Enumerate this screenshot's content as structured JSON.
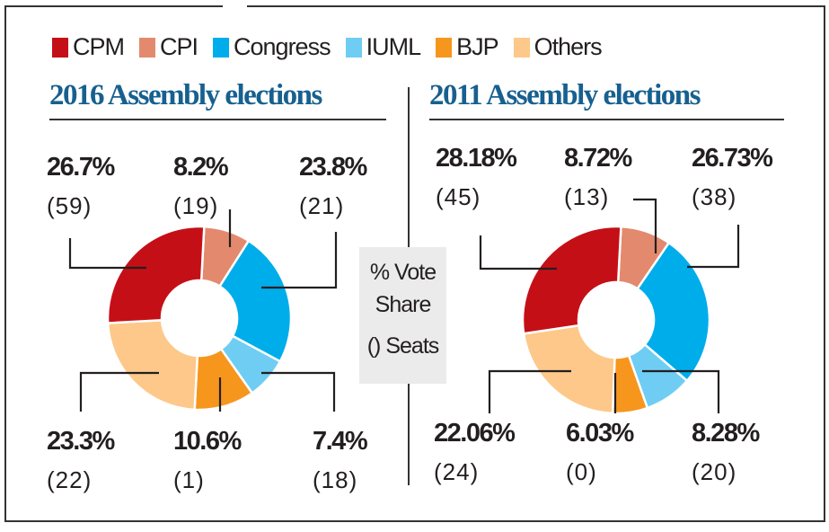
{
  "legend": [
    {
      "label": "CPM",
      "color": "#c50f17"
    },
    {
      "label": "CPI",
      "color": "#e38a6e"
    },
    {
      "label": "Congress",
      "color": "#00adeb"
    },
    {
      "label": "IUML",
      "color": "#6fcdf3"
    },
    {
      "label": "BJP",
      "color": "#f6961d"
    },
    {
      "label": "Others",
      "color": "#fdc88a"
    }
  ],
  "note": {
    "line1": "% Vote",
    "line2": "Share",
    "line3": "() Seats"
  },
  "chart_data": [
    {
      "type": "pie",
      "title": "2016 Assembly elections",
      "donut": true,
      "slices": [
        {
          "name": "CPM",
          "value": 26.7,
          "label": "26.7%",
          "seats": "(59)"
        },
        {
          "name": "CPI",
          "value": 8.2,
          "label": "8.2%",
          "seats": "(19)"
        },
        {
          "name": "Congress",
          "value": 23.8,
          "label": "23.8%",
          "seats": "(21)"
        },
        {
          "name": "IUML",
          "value": 7.4,
          "label": "7.4%",
          "seats": "(18)"
        },
        {
          "name": "BJP",
          "value": 10.6,
          "label": "10.6%",
          "seats": "(1)"
        },
        {
          "name": "Others",
          "value": 23.3,
          "label": "23.3%",
          "seats": "(22)"
        }
      ]
    },
    {
      "type": "pie",
      "title": "2011 Assembly elections",
      "donut": true,
      "slices": [
        {
          "name": "CPM",
          "value": 28.18,
          "label": "28.18%",
          "seats": "(45)"
        },
        {
          "name": "CPI",
          "value": 8.72,
          "label": "8.72%",
          "seats": "(13)"
        },
        {
          "name": "Congress",
          "value": 26.73,
          "label": "26.73%",
          "seats": "(38)"
        },
        {
          "name": "IUML",
          "value": 8.28,
          "label": "8.28%",
          "seats": "(20)"
        },
        {
          "name": "BJP",
          "value": 6.03,
          "label": "6.03%",
          "seats": "(0)"
        },
        {
          "name": "Others",
          "value": 22.06,
          "label": "22.06%",
          "seats": "(24)"
        }
      ]
    }
  ]
}
